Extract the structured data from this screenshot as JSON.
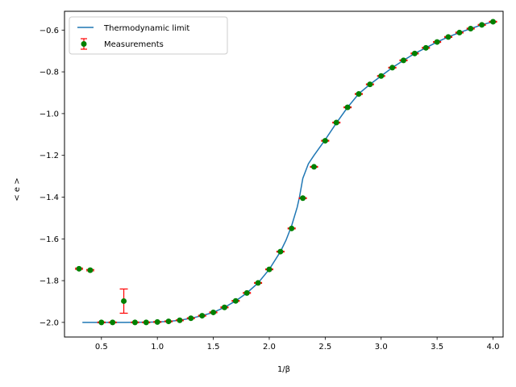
{
  "chart_data": {
    "type": "line",
    "title": "",
    "xlabel": "1/β",
    "ylabel": "< e >",
    "xlim": [
      0.17,
      4.09
    ],
    "ylim": [
      -2.07,
      -0.51
    ],
    "xticks": [
      0.5,
      1.0,
      1.5,
      2.0,
      2.5,
      3.0,
      3.5,
      4.0
    ],
    "xtick_labels": [
      "0.5",
      "1.0",
      "1.5",
      "2.0",
      "2.5",
      "3.0",
      "3.5",
      "4.0"
    ],
    "yticks": [
      -2.0,
      -1.8,
      -1.6,
      -1.4,
      -1.2,
      -1.0,
      -0.8,
      -0.6
    ],
    "ytick_labels": [
      "−2.0",
      "−1.8",
      "−1.6",
      "−1.4",
      "−1.2",
      "−1.0",
      "−0.8",
      "−0.6"
    ],
    "grid": false,
    "legend_position": "top-left",
    "series": [
      {
        "name": "Thermodynamic limit",
        "kind": "line",
        "color": "#1f77b4",
        "x": [
          0.33,
          0.5,
          0.7,
          0.9,
          1.0,
          1.1,
          1.2,
          1.3,
          1.4,
          1.5,
          1.6,
          1.7,
          1.8,
          1.9,
          2.0,
          2.1,
          2.15,
          2.2,
          2.25,
          2.27,
          2.3,
          2.35,
          2.4,
          2.5,
          2.6,
          2.7,
          2.8,
          2.9,
          3.0,
          3.1,
          3.2,
          3.3,
          3.4,
          3.5,
          3.6,
          3.7,
          3.8,
          3.9,
          4.0
        ],
        "y": [
          -2.0,
          -2.0,
          -2.0,
          -1.999,
          -1.998,
          -1.995,
          -1.99,
          -1.98,
          -1.968,
          -1.952,
          -1.928,
          -1.897,
          -1.859,
          -1.811,
          -1.746,
          -1.661,
          -1.606,
          -1.537,
          -1.448,
          -1.4,
          -1.31,
          -1.24,
          -1.2,
          -1.125,
          -1.045,
          -0.97,
          -0.905,
          -0.86,
          -0.82,
          -0.78,
          -0.745,
          -0.712,
          -0.685,
          -0.657,
          -0.633,
          -0.612,
          -0.593,
          -0.575,
          -0.56
        ]
      },
      {
        "name": "Measurements",
        "kind": "errorbar",
        "color": "#008000",
        "error_color": "#ff0000",
        "x": [
          0.3,
          0.4,
          0.5,
          0.6,
          0.7,
          0.8,
          0.9,
          1.0,
          1.1,
          1.2,
          1.3,
          1.4,
          1.5,
          1.6,
          1.7,
          1.8,
          1.9,
          2.0,
          2.1,
          2.2,
          2.3,
          2.4,
          2.5,
          2.6,
          2.7,
          2.8,
          2.9,
          3.0,
          3.1,
          3.2,
          3.3,
          3.4,
          3.5,
          3.6,
          3.7,
          3.8,
          3.9,
          4.0
        ],
        "y": [
          -1.743,
          -1.75,
          -2.0,
          -2.0,
          -1.898,
          -2.0,
          -2.0,
          -1.998,
          -1.995,
          -1.99,
          -1.98,
          -1.968,
          -1.952,
          -1.928,
          -1.897,
          -1.859,
          -1.811,
          -1.746,
          -1.661,
          -1.55,
          -1.405,
          -1.255,
          -1.13,
          -1.043,
          -0.97,
          -0.906,
          -0.86,
          -0.82,
          -0.78,
          -0.745,
          -0.712,
          -0.685,
          -0.657,
          -0.633,
          -0.612,
          -0.593,
          -0.575,
          -0.56
        ],
        "yerr": [
          0.003,
          0.003,
          0.002,
          0.002,
          0.058,
          0.002,
          0.002,
          0.002,
          0.002,
          0.002,
          0.002,
          0.002,
          0.002,
          0.002,
          0.002,
          0.002,
          0.002,
          0.002,
          0.002,
          0.002,
          0.002,
          0.002,
          0.002,
          0.002,
          0.002,
          0.002,
          0.002,
          0.002,
          0.002,
          0.002,
          0.002,
          0.002,
          0.002,
          0.002,
          0.002,
          0.002,
          0.002,
          0.002
        ]
      }
    ]
  }
}
